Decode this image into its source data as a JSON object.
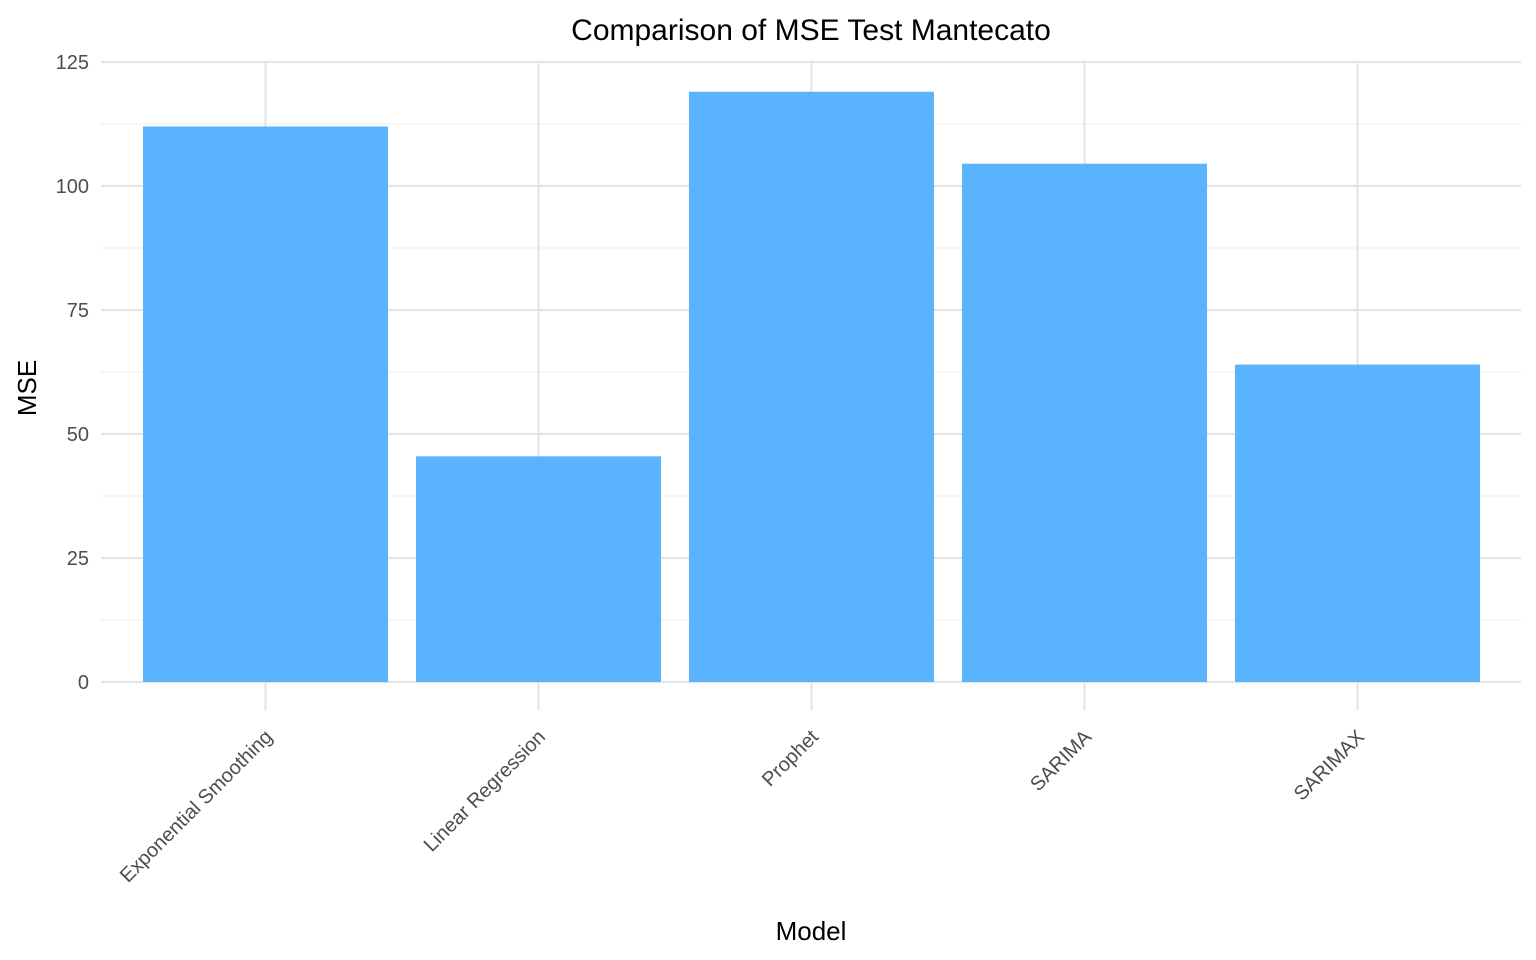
{
  "chart_data": {
    "type": "bar",
    "title": "Comparison of MSE Test Mantecato",
    "xlabel": "Model",
    "ylabel": "MSE",
    "categories": [
      "Exponential Smoothing",
      "Linear Regression",
      "Prophet",
      "SARIMA",
      "SARIMAX"
    ],
    "values": [
      112,
      45.5,
      119,
      104.5,
      64
    ],
    "ylim": [
      0,
      125
    ],
    "yticks": [
      0,
      25,
      50,
      75,
      100,
      125
    ],
    "grid": true,
    "legend": "none",
    "bar_color": "#5ab4fd"
  }
}
